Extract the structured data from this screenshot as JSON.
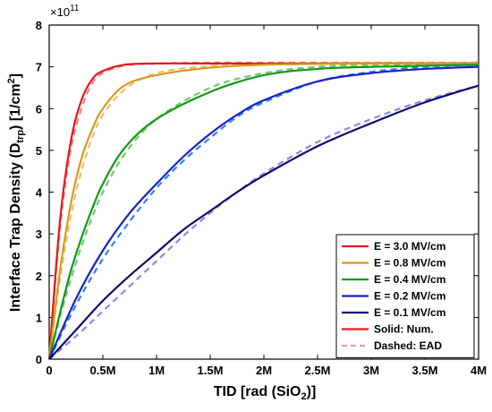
{
  "chart_data": {
    "type": "line",
    "xlabel": "TID [rad (SiO",
    "xlabel_sub": "2",
    "xlabel_end": ")]",
    "ylabel_main": "Interface Trap Density (D",
    "ylabel_sub": "trp",
    "ylabel_mid": ") [1/cm",
    "ylabel_sup": "2",
    "ylabel_end": "]",
    "y_exponent_label": "×10",
    "y_exponent": "11",
    "xlim": [
      0,
      4000000
    ],
    "ylim": [
      0,
      8
    ],
    "x_ticks": [
      0,
      500000,
      1000000,
      1500000,
      2000000,
      2500000,
      3000000,
      3500000,
      4000000
    ],
    "x_tick_labels": [
      "0",
      "0.5M",
      "1M",
      "1.5M",
      "2M",
      "2.5M",
      "3M",
      "3.5M",
      "4M"
    ],
    "y_ticks": [
      0,
      1,
      2,
      3,
      4,
      5,
      6,
      7,
      8
    ],
    "y_tick_labels": [
      "0",
      "1",
      "2",
      "3",
      "4",
      "5",
      "6",
      "7",
      "8"
    ],
    "grid": false,
    "legend_position": "bottom-right",
    "series": [
      {
        "name": "E = 3.0 MV/cm",
        "color": "#e3191c",
        "dash_color": "#f07f80",
        "x": [
          0,
          100000,
          200000,
          300000,
          400000,
          500000,
          700000,
          1000000,
          1500000,
          2000000,
          4000000
        ],
        "num": [
          0,
          3.3,
          5.2,
          6.2,
          6.7,
          6.9,
          7.05,
          7.08,
          7.08,
          7.08,
          7.08
        ],
        "ead": [
          0,
          3.1,
          5.0,
          6.0,
          6.6,
          6.85,
          7.03,
          7.08,
          7.1,
          7.1,
          7.1
        ]
      },
      {
        "name": "E = 0.8 MV/cm",
        "color": "#d99a1e",
        "dash_color": "#edc064",
        "x": [
          0,
          100000,
          200000,
          300000,
          400000,
          500000,
          700000,
          1000000,
          1500000,
          2000000,
          2500000,
          3000000,
          4000000
        ],
        "num": [
          0,
          2.1,
          3.7,
          4.8,
          5.5,
          6.0,
          6.55,
          6.8,
          6.98,
          7.05,
          7.07,
          7.08,
          7.08
        ],
        "ead": [
          0,
          1.9,
          3.4,
          4.5,
          5.3,
          5.85,
          6.45,
          6.85,
          7.02,
          7.07,
          7.08,
          7.1,
          7.1
        ]
      },
      {
        "name": "E = 0.4 MV/cm",
        "color": "#119a18",
        "dash_color": "#6ccb70",
        "x": [
          0,
          100000,
          200000,
          300000,
          400000,
          500000,
          700000,
          1000000,
          1500000,
          2000000,
          2500000,
          3000000,
          4000000
        ],
        "num": [
          0,
          1.1,
          2.1,
          2.9,
          3.6,
          4.2,
          5.05,
          5.75,
          6.4,
          6.8,
          6.95,
          7.0,
          7.05
        ],
        "ead": [
          0,
          1.0,
          1.9,
          2.7,
          3.4,
          4.0,
          4.9,
          5.75,
          6.5,
          6.85,
          7.0,
          7.05,
          7.08
        ]
      },
      {
        "name": "E = 0.2 MV/cm",
        "color": "#1a22c8",
        "dash_color": "#2e86e6",
        "x": [
          0,
          250000,
          500000,
          750000,
          1000000,
          1250000,
          1500000,
          1750000,
          2000000,
          2500000,
          3000000,
          3500000,
          4000000
        ],
        "num": [
          0,
          1.45,
          2.6,
          3.5,
          4.2,
          4.85,
          5.4,
          5.85,
          6.2,
          6.65,
          6.85,
          6.95,
          7.0
        ],
        "ead": [
          0,
          1.3,
          2.4,
          3.3,
          4.1,
          4.75,
          5.3,
          5.8,
          6.15,
          6.65,
          6.88,
          7.0,
          7.05
        ]
      },
      {
        "name": "E = 0.1 MV/cm",
        "color": "#0d0d6e",
        "dash_color": "#8a8ad8",
        "x": [
          0,
          250000,
          500000,
          750000,
          1000000,
          1250000,
          1500000,
          1750000,
          2000000,
          2500000,
          3000000,
          3500000,
          4000000
        ],
        "num": [
          0,
          0.7,
          1.4,
          2.0,
          2.55,
          3.1,
          3.55,
          4.0,
          4.4,
          5.1,
          5.65,
          6.15,
          6.55
        ],
        "ead": [
          0,
          0.55,
          1.15,
          1.75,
          2.35,
          2.95,
          3.5,
          4.0,
          4.45,
          5.2,
          5.75,
          6.2,
          6.55
        ]
      }
    ],
    "legend_extra": [
      {
        "label": "Solid:   Num.",
        "style": "solid",
        "color": "#e3191c"
      },
      {
        "label": "Dashed: EAD",
        "style": "dashed",
        "color": "#ee9aa2"
      }
    ]
  }
}
